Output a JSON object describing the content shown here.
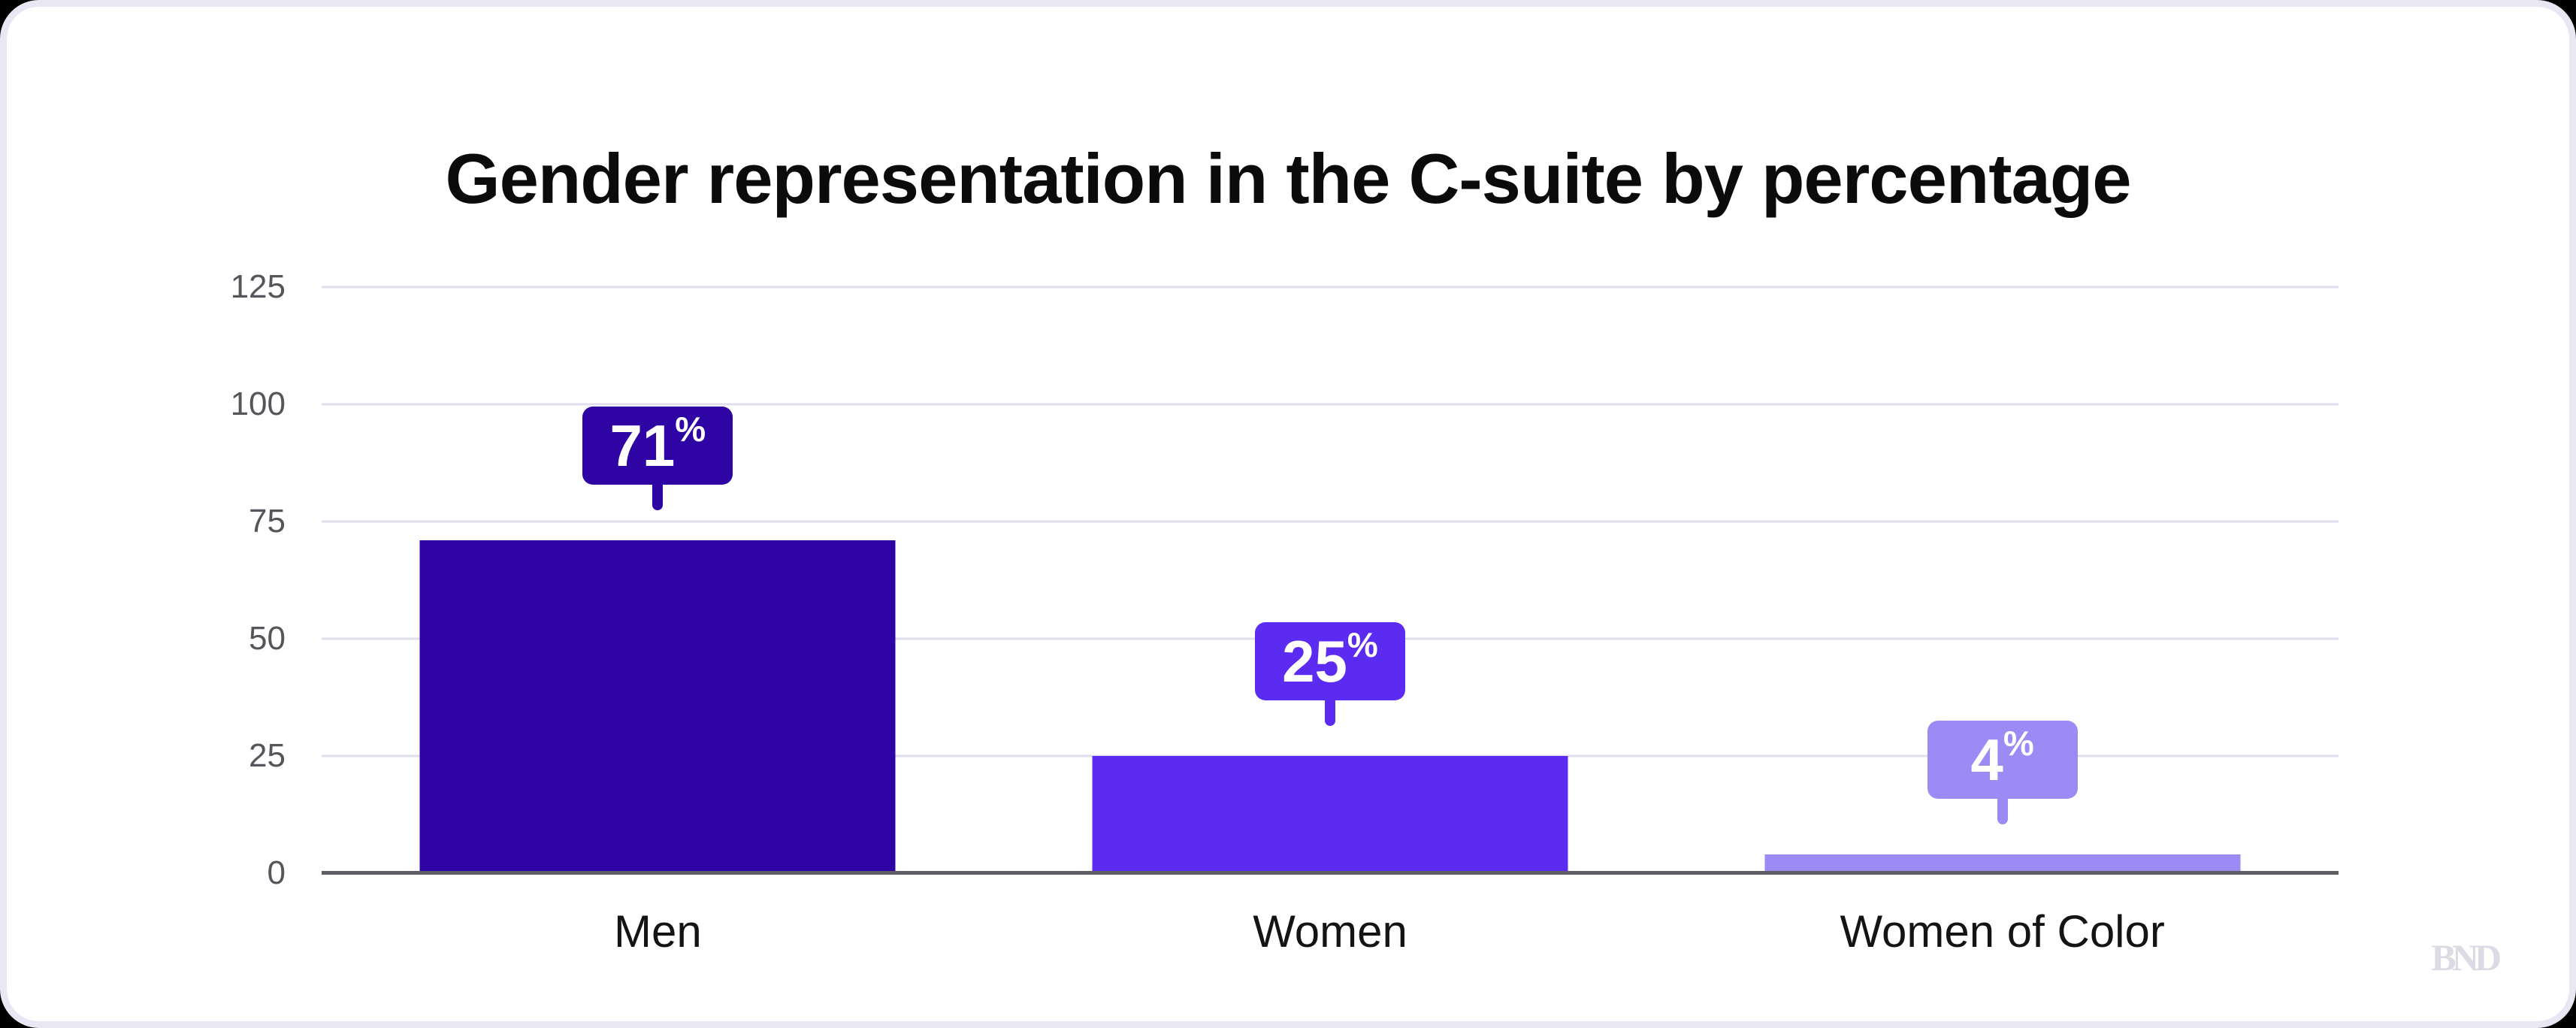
{
  "page": {
    "background_color": "#000000",
    "card_background": "#ffffff",
    "card_border_color": "#e9e7f4"
  },
  "header": {
    "title": "Gender representation in the C-suite by percentage"
  },
  "branding": {
    "watermark": "BND"
  },
  "chart_data": {
    "type": "bar",
    "title": "Gender representation in the C-suite by percentage",
    "categories": [
      "Men",
      "Women",
      "Women of Color"
    ],
    "values": [
      71,
      25,
      4
    ],
    "unit": "%",
    "data_labels": [
      "71%",
      "25%",
      "4%"
    ],
    "bar_colors": [
      "#2e04a4",
      "#5c2bf2",
      "#9c8af5"
    ],
    "yticks": [
      0,
      25,
      50,
      75,
      100,
      125
    ],
    "ylim": [
      0,
      125
    ],
    "xlabel": "",
    "ylabel": "",
    "grid": "horizontal gridlines at each ytick",
    "gridline_color": "#e0ddee",
    "axis_line_color": "#5d5d64",
    "legend": "none",
    "label_style": "rounded callout with downward tail above each bar"
  }
}
